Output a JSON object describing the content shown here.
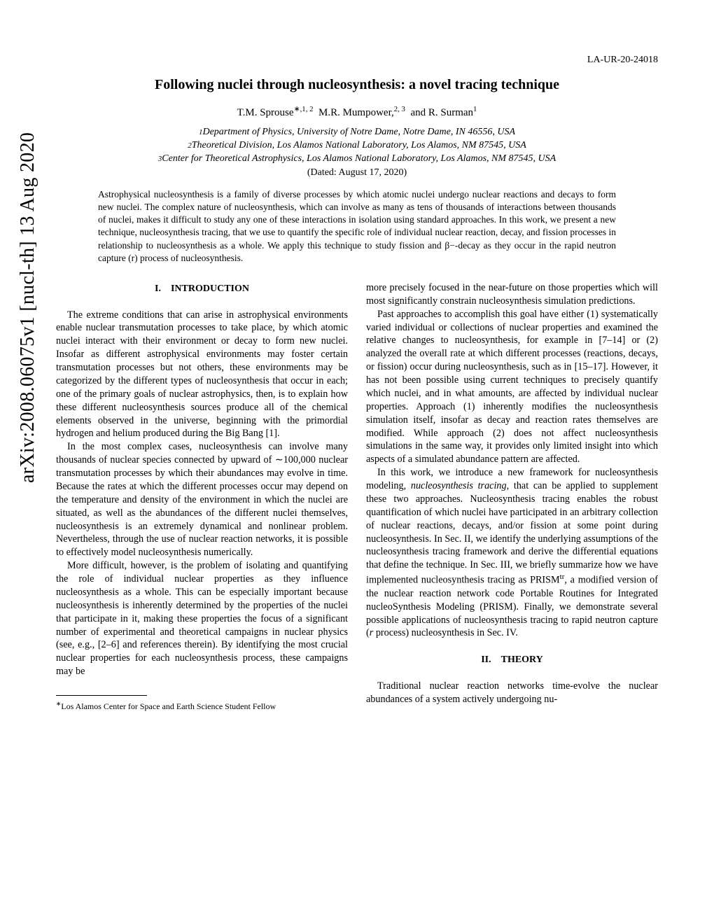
{
  "report_number": "LA-UR-20-24018",
  "title": "Following nuclei through nucleosynthesis: a novel tracing technique",
  "authors": {
    "a1_name": "T.M. Sprouse",
    "a1_sup": "∗,1, 2",
    "a2_name": "M.R. Mumpower,",
    "a2_sup": "2, 3",
    "a3_name": "and R. Surman",
    "a3_sup": "1"
  },
  "affiliations": {
    "l1_sup": "1",
    "l1": "Department of Physics, University of Notre Dame, Notre Dame, IN 46556, USA",
    "l2_sup": "2",
    "l2": "Theoretical Division, Los Alamos National Laboratory, Los Alamos, NM 87545, USA",
    "l3_sup": "3",
    "l3": "Center for Theoretical Astrophysics, Los Alamos National Laboratory, Los Alamos, NM 87545, USA"
  },
  "dated": "(Dated: August 17, 2020)",
  "abstract": "Astrophysical nucleosynthesis is a family of diverse processes by which atomic nuclei undergo nuclear reactions and decays to form new nuclei. The complex nature of nucleosynthesis, which can involve as many as tens of thousands of interactions between thousands of nuclei, makes it difficult to study any one of these interactions in isolation using standard approaches. In this work, we present a new technique, nucleosynthesis tracing, that we use to quantify the specific role of individual nuclear reaction, decay, and fission processes in relationship to nucleosynthesis as a whole. We apply this technique to study fission and β−-decay as they occur in the rapid neutron capture (r) process of nucleosynthesis.",
  "sections": {
    "s1": "I. INTRODUCTION",
    "s2": "II. THEORY"
  },
  "left_col": {
    "p1": "The extreme conditions that can arise in astrophysical environments enable nuclear transmutation processes to take place, by which atomic nuclei interact with their environment or decay to form new nuclei. Insofar as different astrophysical environments may foster certain transmutation processes but not others, these environments may be categorized by the different types of nucleosynthesis that occur in each; one of the primary goals of nuclear astrophysics, then, is to explain how these different nucleosynthesis sources produce all of the chemical elements observed in the universe, beginning with the primordial hydrogen and helium produced during the Big Bang [1].",
    "p2": "In the most complex cases, nucleosynthesis can involve many thousands of nuclear species connected by upward of ∼100,000 nuclear transmutation processes by which their abundances may evolve in time. Because the rates at which the different processes occur may depend on the temperature and density of the environment in which the nuclei are situated, as well as the abundances of the different nuclei themselves, nucleosynthesis is an extremely dynamical and nonlinear problem. Nevertheless, through the use of nuclear reaction networks, it is possible to effectively model nucleosynthesis numerically.",
    "p3": "More difficult, however, is the problem of isolating and quantifying the role of individual nuclear properties as they influence nucleosynthesis as a whole. This can be especially important because nucleosynthesis is inherently determined by the properties of the nuclei that participate in it, making these properties the focus of a significant number of experimental and theoretical campaigns in nuclear physics (see, e.g., [2–6] and references therein). By identifying the most crucial nuclear properties for each nucleosynthesis process, these campaigns may be"
  },
  "right_col": {
    "p1": "more precisely focused in the near-future on those properties which will most significantly constrain nucleosynthesis simulation predictions.",
    "p2": "Past approaches to accomplish this goal have either (1) systematically varied individual or collections of nuclear properties and examined the relative changes to nucleosynthesis, for example in [7–14] or (2) analyzed the overall rate at which different processes (reactions, decays, or fission) occur during nucleosynthesis, such as in [15–17]. However, it has not been possible using current techniques to precisely quantify which nuclei, and in what amounts, are affected by individual nuclear properties. Approach (1) inherently modifies the nucleosynthesis simulation itself, insofar as decay and reaction rates themselves are modified. While approach (2) does not affect nucleosynthesis simulations in the same way, it provides only limited insight into which aspects of a simulated abundance pattern are affected.",
    "p3_a": "In this work, we introduce a new framework for nucleosynthesis modeling, ",
    "p3_em": "nucleosynthesis tracing",
    "p3_b": ", that can be applied to supplement these two approaches. Nucleosynthesis tracing enables the robust quantification of which nuclei have participated in an arbitrary collection of nuclear reactions, decays, and/or fission at some point during nucleosynthesis. In Sec. II, we identify the underlying assumptions of the nucleosynthesis tracing framework and derive the differential equations that define the technique. In Sec. III, we briefly summarize how we have implemented nucleosynthesis tracing as PRISM",
    "p3_sup": "tr",
    "p3_c": ", a modified version of the nuclear reaction network code Portable Routines for Integrated nucleoSynthesis Modeling (PRISM). Finally, we demonstrate several possible applications of nucleosynthesis tracing to rapid neutron capture (",
    "p3_em2": "r",
    "p3_d": " process) nucleosynthesis in Sec. IV.",
    "p4": "Traditional nuclear reaction networks time-evolve the nuclear abundances of a system actively undergoing nu-"
  },
  "footnote": {
    "sup": "∗",
    "text": "Los Alamos Center for Space and Earth Science Student Fellow"
  },
  "arxiv": "arXiv:2008.06075v1  [nucl-th]  13 Aug 2020"
}
